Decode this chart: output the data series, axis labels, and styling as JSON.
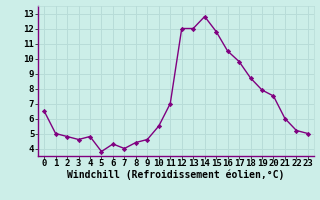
{
  "x": [
    0,
    1,
    2,
    3,
    4,
    5,
    6,
    7,
    8,
    9,
    10,
    11,
    12,
    13,
    14,
    15,
    16,
    17,
    18,
    19,
    20,
    21,
    22,
    23
  ],
  "y": [
    6.5,
    5.0,
    4.8,
    4.6,
    4.8,
    3.8,
    4.3,
    4.0,
    4.4,
    4.6,
    5.5,
    7.0,
    12.0,
    12.0,
    12.8,
    11.8,
    10.5,
    9.8,
    8.7,
    7.9,
    7.5,
    6.0,
    5.2,
    5.0
  ],
  "line_color": "#800080",
  "marker": "D",
  "marker_size": 2.2,
  "linewidth": 1.0,
  "bg_color": "#cceee8",
  "grid_color": "#b8dcd8",
  "xlabel": "Windchill (Refroidissement éolien,°C)",
  "xlabel_fontsize": 7,
  "tick_fontsize": 6.5,
  "xlim": [
    -0.5,
    23.5
  ],
  "ylim": [
    3.5,
    13.5
  ],
  "yticks": [
    4,
    5,
    6,
    7,
    8,
    9,
    10,
    11,
    12,
    13
  ],
  "xticks": [
    0,
    1,
    2,
    3,
    4,
    5,
    6,
    7,
    8,
    9,
    10,
    11,
    12,
    13,
    14,
    15,
    16,
    17,
    18,
    19,
    20,
    21,
    22,
    23
  ]
}
